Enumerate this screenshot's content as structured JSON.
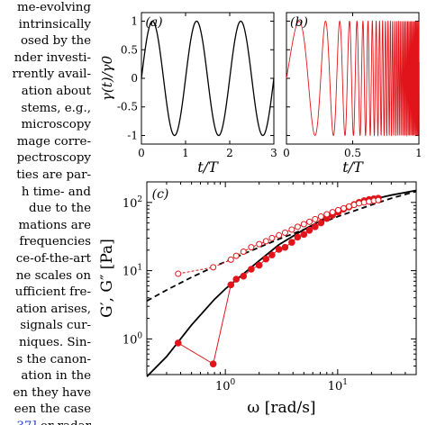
{
  "paper_text": {
    "lines": [
      "me-evolving",
      "intrinsically",
      "osed by the",
      "nder investi-",
      "rrently avail-",
      "ation about",
      "stems, e.g.,",
      "microscopy",
      "mage corre-",
      "pectroscopy",
      "ties are par-",
      "h time- and",
      "due to the",
      "mations are",
      "frequencies",
      "ce-of-the-art",
      "ne scales on",
      "ufficient fre-",
      "ation arises,",
      "signals cur-",
      "niques. Sin-",
      "s the canon-",
      "ation in the",
      "en they have",
      "een the case"
    ],
    "last_line_cite": "37]",
    "last_line_rest": " or radar"
  },
  "colors": {
    "black_series": "#000000",
    "red_series": "#e0141a",
    "axis": "#000000",
    "citation": "#1f3fc4"
  },
  "chart_data": [
    {
      "panel_label": "(a)",
      "type": "line",
      "xlabel": "t/T",
      "ylabel": "γ(t)/γ0",
      "xlim": [
        0,
        3
      ],
      "ylim": [
        -1.15,
        1.15
      ],
      "xticks": [
        "0",
        "1",
        "2",
        "3"
      ],
      "yticks": [
        "-1",
        "-0.5",
        "0",
        "0.5",
        "1"
      ],
      "series": [
        {
          "color": "#000000",
          "function": "sin(2*pi*t)",
          "t_range": [
            0,
            3
          ]
        }
      ]
    },
    {
      "panel_label": "(b)",
      "type": "line",
      "xlabel": "t/T",
      "xlim": [
        0,
        1
      ],
      "ylim": [
        -1.15,
        1.15
      ],
      "xticks": [
        "0",
        "0.5",
        "1"
      ],
      "series": [
        {
          "color": "#e0141a",
          "function": "sin(phi(t)), frequency increasing exponentially (chirp)",
          "t_range": [
            0,
            1
          ]
        }
      ]
    },
    {
      "panel_label": "(c)",
      "type": "scatter",
      "xlabel": "ω [rad/s]",
      "ylabel": "G′, G″ [Pa]",
      "xscale": "log",
      "yscale": "log",
      "xlim": [
        0.2,
        50
      ],
      "ylim": [
        0.3,
        200
      ],
      "xticks": [
        "10^0",
        "10^1"
      ],
      "yticks": [
        "10^0",
        "10^1",
        "10^2"
      ],
      "series": [
        {
          "marker": "filled-circle",
          "color": "#e0141a",
          "connected": true,
          "x": [
            0.38,
            0.78,
            1.12,
            1.25,
            1.45,
            1.7,
            2.0,
            2.3,
            2.6,
            3.0,
            3.4,
            3.9,
            4.4,
            5.0,
            5.6,
            6.3,
            7.1,
            8.0,
            9.0,
            10.1,
            11.3,
            12.6,
            14.0,
            15.5,
            17.2,
            19.0,
            21.0,
            23.0
          ],
          "y": [
            0.87,
            0.43,
            6.2,
            7.5,
            8.3,
            10.5,
            12.0,
            14.8,
            17.0,
            20.5,
            22.0,
            26.0,
            31.0,
            34.0,
            39.0,
            44.0,
            50.0,
            58.0,
            65.0,
            72.0,
            80.0,
            86.0,
            93.0,
            100.0,
            106.0,
            110.0,
            113.0,
            115.0
          ]
        },
        {
          "marker": "open-circle",
          "color": "#e0141a",
          "connected": true,
          "linestyle": "dashed",
          "x": [
            0.38,
            0.78,
            1.12,
            1.25,
            1.45,
            1.7,
            2.0,
            2.3,
            2.6,
            3.0,
            3.4,
            3.9,
            4.4,
            5.0,
            5.6,
            6.3,
            7.1,
            8.0,
            9.0,
            10.1,
            11.3,
            12.6,
            14.0,
            15.5,
            17.2,
            19.0,
            21.0,
            23.0
          ],
          "y": [
            9.0,
            11.2,
            14.5,
            16.5,
            19.0,
            22.0,
            24.5,
            27.0,
            30.0,
            33.0,
            36.0,
            40.0,
            44.0,
            48.0,
            52.0,
            57.0,
            62.0,
            67.0,
            72.0,
            77.0,
            82.0,
            87.0,
            92.0,
            97.0,
            100.0,
            103.0,
            106.0,
            108.0
          ]
        },
        {
          "line": "solid",
          "color": "#000000",
          "x": [
            0.2,
            0.3,
            0.5,
            0.8,
            1.0,
            2.0,
            3.0,
            5.0,
            10.0,
            20.0,
            30.0,
            50.0
          ],
          "y": [
            0.28,
            0.55,
            1.6,
            3.8,
            5.4,
            14.0,
            24.0,
            40.0,
            72.0,
            110.0,
            128.0,
            150.0
          ]
        },
        {
          "line": "dashed",
          "color": "#000000",
          "x": [
            0.2,
            0.3,
            0.5,
            0.8,
            1.0,
            2.0,
            3.0,
            5.0,
            10.0,
            20.0,
            30.0,
            50.0
          ],
          "y": [
            3.6,
            5.2,
            8.0,
            11.5,
            13.5,
            22.0,
            29.0,
            40.0,
            62.0,
            92.0,
            115.0,
            145.0
          ]
        }
      ]
    }
  ]
}
